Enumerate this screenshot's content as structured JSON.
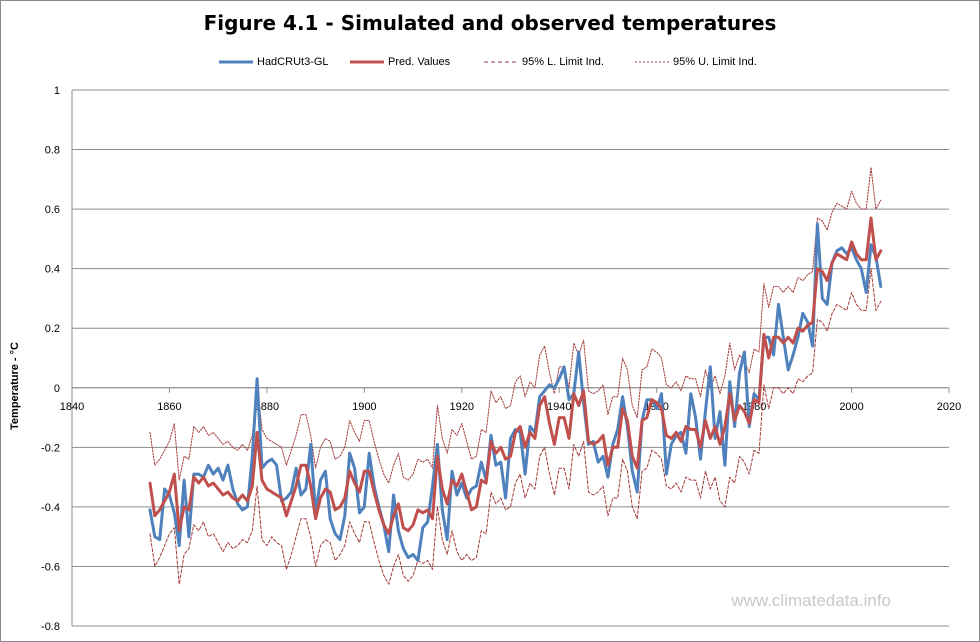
{
  "chart_data": {
    "type": "line",
    "title": "Figure 4.1 - Simulated and observed temperatures",
    "ylabel": "Temperature - °C",
    "xlim": [
      1840,
      2020
    ],
    "ylim": [
      -0.8,
      1.0
    ],
    "xticks": [
      1840,
      1860,
      1880,
      1900,
      1920,
      1940,
      1960,
      1980,
      2000,
      2020
    ],
    "yticks": [
      -0.8,
      -0.6,
      -0.4,
      -0.2,
      0,
      0.2,
      0.4,
      0.6,
      0.8,
      1
    ],
    "grid": "horizontal",
    "legend_position": "top",
    "watermark": "www.climatedata.info",
    "start_year": 1856,
    "series": [
      {
        "name": "HadCRUt3-GL",
        "color": "#4F81BD",
        "style": "solid",
        "width": 3,
        "values": [
          -0.41,
          -0.5,
          -0.51,
          -0.34,
          -0.36,
          -0.42,
          -0.53,
          -0.31,
          -0.5,
          -0.29,
          -0.29,
          -0.3,
          -0.26,
          -0.29,
          -0.27,
          -0.31,
          -0.26,
          -0.34,
          -0.39,
          -0.41,
          -0.4,
          -0.23,
          0.03,
          -0.27,
          -0.25,
          -0.24,
          -0.26,
          -0.38,
          -0.37,
          -0.35,
          -0.27,
          -0.36,
          -0.34,
          -0.19,
          -0.42,
          -0.31,
          -0.28,
          -0.44,
          -0.49,
          -0.51,
          -0.43,
          -0.22,
          -0.27,
          -0.42,
          -0.4,
          -0.22,
          -0.33,
          -0.4,
          -0.46,
          -0.55,
          -0.36,
          -0.48,
          -0.54,
          -0.57,
          -0.56,
          -0.58,
          -0.47,
          -0.45,
          -0.33,
          -0.19,
          -0.41,
          -0.51,
          -0.28,
          -0.36,
          -0.32,
          -0.37,
          -0.34,
          -0.33,
          -0.25,
          -0.31,
          -0.16,
          -0.26,
          -0.25,
          -0.37,
          -0.17,
          -0.14,
          -0.15,
          -0.29,
          -0.13,
          -0.15,
          -0.03,
          -0.01,
          0.01,
          0.0,
          0.03,
          0.07,
          -0.04,
          -0.02,
          0.12,
          -0.05,
          -0.19,
          -0.18,
          -0.25,
          -0.23,
          -0.3,
          -0.19,
          -0.14,
          -0.03,
          -0.13,
          -0.28,
          -0.35,
          -0.11,
          -0.04,
          -0.04,
          -0.07,
          -0.02,
          -0.29,
          -0.19,
          -0.16,
          -0.15,
          -0.22,
          -0.02,
          -0.1,
          -0.24,
          -0.08,
          0.07,
          -0.17,
          -0.08,
          -0.26,
          0.02,
          -0.13,
          0.05,
          0.12,
          -0.13,
          -0.02,
          -0.04,
          0.17,
          0.17,
          0.11,
          0.28,
          0.17,
          0.06,
          0.11,
          0.17,
          0.25,
          0.22,
          0.14,
          0.55,
          0.3,
          0.28,
          0.42,
          0.46,
          0.47,
          0.45,
          0.47,
          0.43,
          0.4,
          0.32,
          0.48,
          0.44,
          0.34
        ]
      },
      {
        "name": "Pred. Values",
        "color": "#C0504D",
        "style": "solid",
        "width": 3,
        "values": [
          -0.32,
          -0.43,
          -0.41,
          -0.38,
          -0.35,
          -0.29,
          -0.48,
          -0.4,
          -0.41,
          -0.3,
          -0.32,
          -0.3,
          -0.33,
          -0.32,
          -0.34,
          -0.36,
          -0.35,
          -0.37,
          -0.38,
          -0.36,
          -0.38,
          -0.33,
          -0.15,
          -0.31,
          -0.34,
          -0.35,
          -0.36,
          -0.37,
          -0.43,
          -0.38,
          -0.33,
          -0.26,
          -0.26,
          -0.33,
          -0.44,
          -0.37,
          -0.34,
          -0.35,
          -0.41,
          -0.4,
          -0.37,
          -0.28,
          -0.32,
          -0.35,
          -0.28,
          -0.28,
          -0.35,
          -0.41,
          -0.46,
          -0.49,
          -0.43,
          -0.39,
          -0.47,
          -0.48,
          -0.46,
          -0.41,
          -0.42,
          -0.41,
          -0.44,
          -0.23,
          -0.34,
          -0.39,
          -0.31,
          -0.33,
          -0.29,
          -0.35,
          -0.41,
          -0.4,
          -0.31,
          -0.32,
          -0.18,
          -0.22,
          -0.2,
          -0.24,
          -0.23,
          -0.15,
          -0.13,
          -0.2,
          -0.15,
          -0.17,
          -0.06,
          -0.03,
          -0.12,
          -0.19,
          -0.1,
          -0.1,
          -0.17,
          -0.02,
          -0.06,
          -0.01,
          -0.18,
          -0.19,
          -0.18,
          -0.16,
          -0.26,
          -0.2,
          -0.2,
          -0.07,
          -0.11,
          -0.23,
          -0.27,
          -0.11,
          -0.1,
          -0.04,
          -0.05,
          -0.07,
          -0.16,
          -0.17,
          -0.15,
          -0.18,
          -0.13,
          -0.14,
          -0.14,
          -0.2,
          -0.11,
          -0.17,
          -0.13,
          -0.19,
          -0.13,
          -0.02,
          -0.11,
          -0.06,
          -0.08,
          -0.12,
          -0.04,
          -0.05,
          0.18,
          0.1,
          0.17,
          0.17,
          0.15,
          0.17,
          0.15,
          0.2,
          0.19,
          0.21,
          0.22,
          0.4,
          0.39,
          0.36,
          0.42,
          0.45,
          0.44,
          0.43,
          0.49,
          0.45,
          0.43,
          0.43,
          0.57,
          0.43,
          0.46
        ]
      },
      {
        "name": "95% L. Limit Ind.",
        "color": "#A23A36",
        "style": "dashed",
        "width": 1,
        "values": [
          -0.49,
          -0.6,
          -0.57,
          -0.53,
          -0.49,
          -0.47,
          -0.66,
          -0.56,
          -0.54,
          -0.46,
          -0.48,
          -0.45,
          -0.5,
          -0.49,
          -0.52,
          -0.55,
          -0.52,
          -0.54,
          -0.53,
          -0.51,
          -0.52,
          -0.48,
          -0.33,
          -0.51,
          -0.53,
          -0.5,
          -0.52,
          -0.53,
          -0.61,
          -0.56,
          -0.5,
          -0.44,
          -0.44,
          -0.5,
          -0.6,
          -0.53,
          -0.51,
          -0.52,
          -0.58,
          -0.56,
          -0.53,
          -0.45,
          -0.49,
          -0.52,
          -0.45,
          -0.45,
          -0.52,
          -0.58,
          -0.63,
          -0.66,
          -0.6,
          -0.56,
          -0.63,
          -0.65,
          -0.63,
          -0.58,
          -0.59,
          -0.58,
          -0.61,
          -0.4,
          -0.51,
          -0.56,
          -0.48,
          -0.55,
          -0.58,
          -0.56,
          -0.58,
          -0.57,
          -0.48,
          -0.49,
          -0.35,
          -0.39,
          -0.37,
          -0.41,
          -0.4,
          -0.32,
          -0.29,
          -0.37,
          -0.32,
          -0.34,
          -0.23,
          -0.2,
          -0.29,
          -0.36,
          -0.27,
          -0.27,
          -0.34,
          -0.19,
          -0.23,
          -0.18,
          -0.35,
          -0.36,
          -0.35,
          -0.33,
          -0.43,
          -0.37,
          -0.37,
          -0.24,
          -0.28,
          -0.4,
          -0.44,
          -0.28,
          -0.27,
          -0.21,
          -0.22,
          -0.24,
          -0.33,
          -0.34,
          -0.32,
          -0.35,
          -0.3,
          -0.31,
          -0.31,
          -0.37,
          -0.28,
          -0.34,
          -0.3,
          -0.38,
          -0.4,
          -0.3,
          -0.32,
          -0.23,
          -0.25,
          -0.29,
          -0.21,
          -0.22,
          0.01,
          -0.07,
          0.0,
          0.0,
          -0.02,
          0.0,
          -0.02,
          0.03,
          0.02,
          0.04,
          0.05,
          0.23,
          0.22,
          0.19,
          0.25,
          0.28,
          0.27,
          0.26,
          0.32,
          0.28,
          0.26,
          0.26,
          0.4,
          0.26,
          0.29
        ]
      },
      {
        "name": "95% U. Limit Ind.",
        "color": "#A23A36",
        "style": "dotted",
        "width": 1,
        "values": [
          -0.15,
          -0.26,
          -0.24,
          -0.21,
          -0.18,
          -0.12,
          -0.31,
          -0.23,
          -0.24,
          -0.13,
          -0.15,
          -0.13,
          -0.16,
          -0.15,
          -0.17,
          -0.19,
          -0.18,
          -0.2,
          -0.21,
          -0.19,
          -0.21,
          -0.16,
          0.02,
          -0.14,
          -0.17,
          -0.18,
          -0.19,
          -0.2,
          -0.26,
          -0.21,
          -0.16,
          -0.09,
          -0.09,
          -0.16,
          -0.27,
          -0.2,
          -0.17,
          -0.18,
          -0.24,
          -0.23,
          -0.2,
          -0.11,
          -0.15,
          -0.18,
          -0.11,
          -0.11,
          -0.18,
          -0.24,
          -0.29,
          -0.32,
          -0.26,
          -0.22,
          -0.3,
          -0.31,
          -0.29,
          -0.24,
          -0.25,
          -0.24,
          -0.27,
          -0.06,
          -0.17,
          -0.22,
          -0.14,
          -0.16,
          -0.12,
          -0.18,
          -0.24,
          -0.23,
          -0.14,
          -0.15,
          -0.01,
          -0.05,
          -0.03,
          -0.07,
          -0.06,
          0.02,
          0.04,
          -0.03,
          0.02,
          0.0,
          0.11,
          0.14,
          0.05,
          -0.02,
          0.07,
          0.07,
          0.0,
          0.15,
          0.11,
          0.16,
          -0.01,
          -0.02,
          -0.01,
          0.01,
          -0.09,
          -0.03,
          -0.03,
          0.1,
          0.06,
          -0.06,
          -0.1,
          0.06,
          0.07,
          0.13,
          0.12,
          0.1,
          0.01,
          0.0,
          0.02,
          -0.01,
          0.04,
          0.03,
          0.03,
          -0.03,
          0.06,
          0.0,
          0.04,
          -0.02,
          0.04,
          0.15,
          0.06,
          0.11,
          0.09,
          0.05,
          0.13,
          0.12,
          0.35,
          0.27,
          0.34,
          0.34,
          0.32,
          0.34,
          0.32,
          0.37,
          0.36,
          0.38,
          0.39,
          0.57,
          0.56,
          0.53,
          0.59,
          0.62,
          0.61,
          0.6,
          0.66,
          0.62,
          0.6,
          0.6,
          0.74,
          0.6,
          0.63
        ]
      }
    ]
  }
}
